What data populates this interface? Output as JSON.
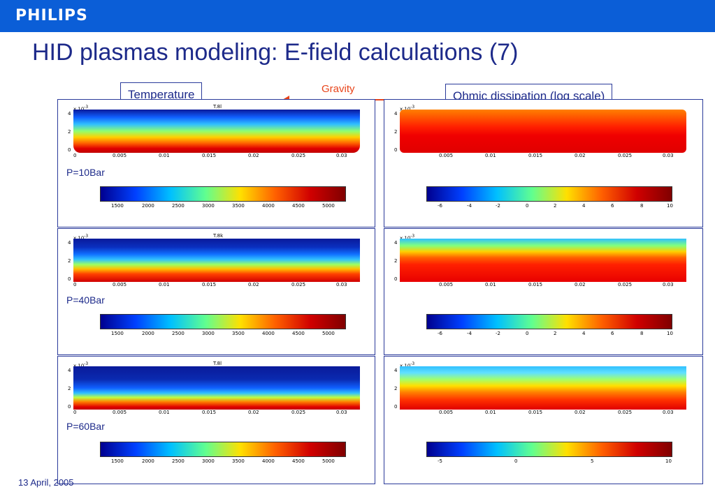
{
  "header": {
    "logo": "PHILIPS",
    "bar_color": "#0b5ed7"
  },
  "title": "HID plasmas modeling: E-field calculations (7)",
  "labels": {
    "temperature": "Temperature",
    "gravity": "Gravity",
    "ohmic": "Ohmic dissipation (log scale)"
  },
  "footer": {
    "date": "13 April, 2005"
  },
  "colors": {
    "title": "#1d2a8a",
    "gravity": "#e8441a"
  },
  "rows": [
    {
      "pressure": "P=10Bar",
      "plot_title": "T.8l"
    },
    {
      "pressure": "P=40Bar",
      "plot_title": "T.8k"
    },
    {
      "pressure": "P=60Bar",
      "plot_title": "T.8l"
    }
  ],
  "plots": {
    "x_ticks": [
      "0",
      "0.005",
      "0.01",
      "0.015",
      "0.02",
      "0.025",
      "0.03"
    ],
    "y_ticks": [
      "4",
      "2",
      "0"
    ],
    "y_exponent": "x 10",
    "y_exponent_power": "-3"
  },
  "colorbars": {
    "temperature": [
      "1500",
      "2000",
      "2500",
      "3000",
      "3500",
      "4000",
      "4500",
      "5000"
    ],
    "ohmic_rows_1_2": [
      "-6",
      "-4",
      "-2",
      "0",
      "2",
      "4",
      "6",
      "8",
      "10"
    ],
    "ohmic_row_3": [
      "-5",
      "0",
      "5",
      "10"
    ]
  }
}
